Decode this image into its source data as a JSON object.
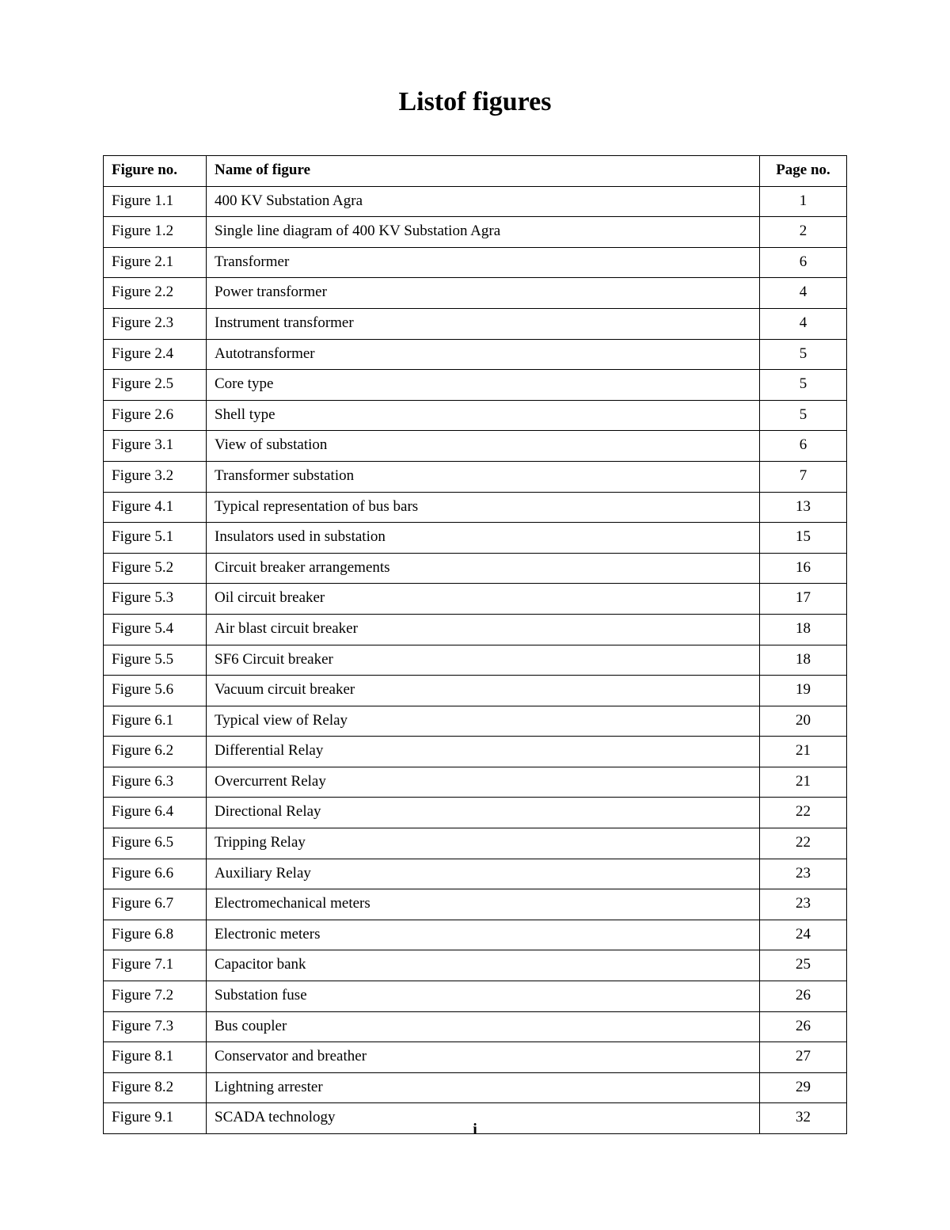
{
  "title": "Listof figures",
  "page_number": "i",
  "table": {
    "columns": [
      "Figure no.",
      "Name of figure",
      "Page no."
    ],
    "rows": [
      [
        "Figure 1.1",
        "400 KV Substation Agra",
        "1"
      ],
      [
        "Figure 1.2",
        "Single line diagram of 400 KV Substation Agra",
        "2"
      ],
      [
        "Figure 2.1",
        "Transformer",
        "6"
      ],
      [
        "Figure 2.2",
        "Power transformer",
        "4"
      ],
      [
        "Figure 2.3",
        "Instrument transformer",
        "4"
      ],
      [
        "Figure 2.4",
        "Autotransformer",
        "5"
      ],
      [
        "Figure 2.5",
        "Core type",
        "5"
      ],
      [
        "Figure 2.6",
        "Shell type",
        "5"
      ],
      [
        "Figure 3.1",
        "View of substation",
        "6"
      ],
      [
        "Figure 3.2",
        "Transformer substation",
        "7"
      ],
      [
        "Figure 4.1",
        "Typical representation of bus bars",
        "13"
      ],
      [
        "Figure 5.1",
        "Insulators used in substation",
        "15"
      ],
      [
        "Figure 5.2",
        "Circuit breaker arrangements",
        "16"
      ],
      [
        "Figure 5.3",
        "Oil circuit breaker",
        "17"
      ],
      [
        "Figure 5.4",
        "Air blast circuit breaker",
        "18"
      ],
      [
        "Figure 5.5",
        "SF6 Circuit breaker",
        "18"
      ],
      [
        "Figure 5.6",
        "Vacuum circuit breaker",
        "19"
      ],
      [
        "Figure 6.1",
        "Typical view of Relay",
        "20"
      ],
      [
        "Figure 6.2",
        "Differential Relay",
        "21"
      ],
      [
        "Figure 6.3",
        "Overcurrent Relay",
        "21"
      ],
      [
        "Figure 6.4",
        "Directional Relay",
        "22"
      ],
      [
        "Figure 6.5",
        "Tripping Relay",
        "22"
      ],
      [
        "Figure 6.6",
        "Auxiliary Relay",
        "23"
      ],
      [
        "Figure 6.7",
        "Electromechanical meters",
        "23"
      ],
      [
        "Figure 6.8",
        "Electronic meters",
        "24"
      ],
      [
        "Figure 7.1",
        "Capacitor bank",
        "25"
      ],
      [
        "Figure 7.2",
        "Substation fuse",
        "26"
      ],
      [
        "Figure 7.3",
        "Bus coupler",
        "26"
      ],
      [
        "Figure 8.1",
        "Conservator and breather",
        "27"
      ],
      [
        "Figure 8.2",
        "Lightning arrester",
        "29"
      ],
      [
        "Figure 9.1",
        "SCADA technology",
        "32"
      ]
    ]
  }
}
